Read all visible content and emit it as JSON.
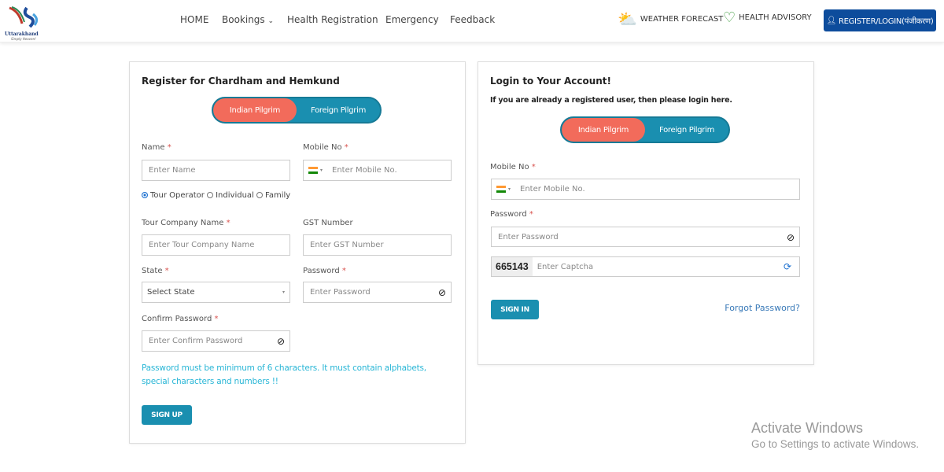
{
  "header": {
    "logo_text": "Uttarakhand",
    "logo_tagline": "Simply Heaven!",
    "nav": [
      {
        "label": "HOME"
      },
      {
        "label": "Bookings"
      },
      {
        "label": "Health Registration"
      },
      {
        "label": "Emergency"
      },
      {
        "label": "Feedback"
      }
    ],
    "weather": "WEATHER FORECAST",
    "health_advisory": "HEALTH ADVISORY",
    "register_login": "REGISTER/LOGIN(पंजीकरण)"
  },
  "register": {
    "title": "Register for Chardham and Hemkund",
    "toggle": [
      "Indian Pilgrim",
      "Foreign Pilgrim"
    ],
    "name_label": "Name",
    "name_placeholder": "Enter Name",
    "mobile_label": "Mobile No",
    "mobile_placeholder": "Enter  Mobile No.",
    "types": [
      "Tour Operator",
      "Individual",
      "Family"
    ],
    "selected_type": "Tour Operator",
    "company_label": "Tour Company Name",
    "company_placeholder": "Enter Tour Company Name",
    "gst_label": "GST Number",
    "gst_placeholder": "Enter GST Number",
    "state_label": "State",
    "state_value": "Select State",
    "password_label": "Password",
    "password_placeholder": "Enter  Password",
    "confirm_label": "Confirm Password",
    "confirm_placeholder": "Enter Confirm Password",
    "hint_line1": "Password must be minimum of 6 characters. It must contain alphabets,",
    "hint_line2": "special characters and numbers !!",
    "signup": "SIGN UP"
  },
  "login": {
    "title": "Login to Your Account!",
    "subtitle": "If you are already a registered user, then please login here.",
    "toggle": [
      "Indian Pilgrim",
      "Foreign Pilgrim"
    ],
    "mobile_label": "Mobile No",
    "mobile_placeholder": "Enter  Mobile No.",
    "password_label": "Password",
    "password_placeholder": "Enter  Password",
    "captcha_code": "665143",
    "captcha_placeholder": "Enter Captcha",
    "signin": "SIGN IN",
    "forgot": "Forgot Password?"
  },
  "watermark": {
    "line1": "Activate Windows",
    "line2": "Go to Settings to activate Windows."
  },
  "colors": {
    "primary": "#1a8fb0",
    "active_toggle": "#f26b5b",
    "header_button": "#0d4c9c",
    "hint": "#29b6d6"
  }
}
